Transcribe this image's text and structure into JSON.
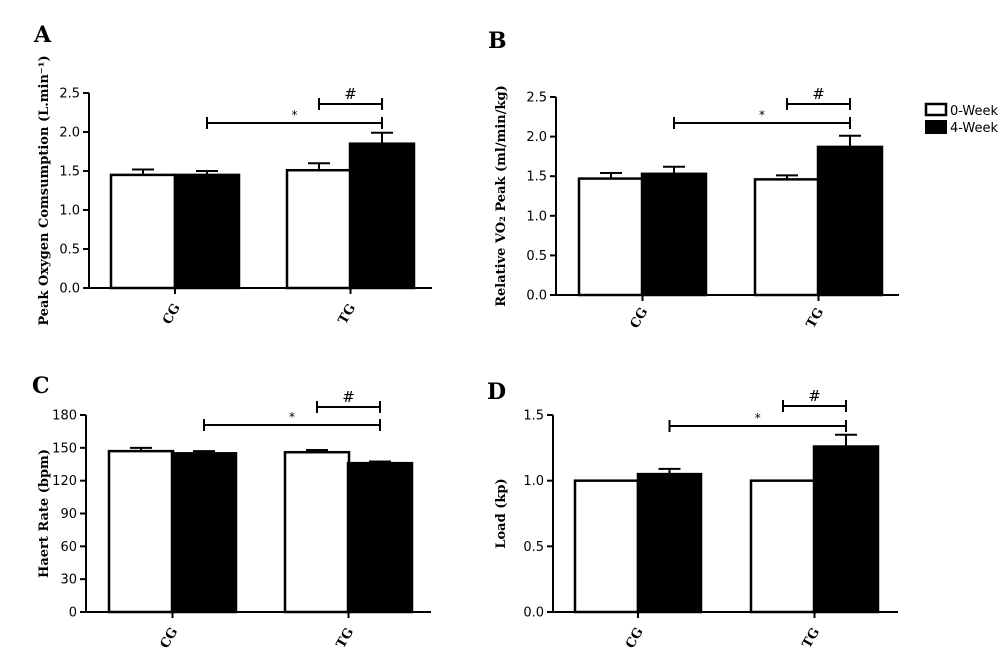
{
  "legend": {
    "items": [
      {
        "label": "0-Week",
        "color": "#ffffff"
      },
      {
        "label": "4-Week",
        "color": "#000000"
      }
    ]
  },
  "chart_data": [
    {
      "type": "bar",
      "panel": "A",
      "ylabel": "Peak Oxygen Comsumption (L.min⁻¹)",
      "categories": [
        "CG",
        "TG"
      ],
      "ylim": [
        0,
        2.5
      ],
      "yticks": [
        0.0,
        0.5,
        1.0,
        1.5,
        2.0,
        2.5
      ],
      "tick_labels": [
        "0.0",
        "0.5",
        "1.0",
        "1.5",
        "2.0",
        "2.5"
      ],
      "series": [
        {
          "name": "0-Week",
          "values": [
            1.45,
            1.51
          ],
          "errors": [
            0.07,
            0.09
          ]
        },
        {
          "name": "4-Week",
          "values": [
            1.45,
            1.85
          ],
          "errors": [
            0.05,
            0.14
          ]
        }
      ],
      "annotations": [
        {
          "symbol": "*",
          "from": "CG",
          "to": "TG"
        },
        {
          "symbol": "#",
          "within": "TG"
        }
      ]
    },
    {
      "type": "bar",
      "panel": "B",
      "ylabel": "Relative VO₂ Peak (ml/min/kg)",
      "categories": [
        "CG",
        "TG"
      ],
      "ylim": [
        0,
        2.5
      ],
      "yticks": [
        0.0,
        0.5,
        1.0,
        1.5,
        2.0,
        2.5
      ],
      "tick_labels": [
        "0.0",
        "0.5",
        "1.0",
        "1.5",
        "2.0",
        "2.5"
      ],
      "series": [
        {
          "name": "0-Week",
          "values": [
            1.47,
            1.46
          ],
          "errors": [
            0.07,
            0.05
          ]
        },
        {
          "name": "4-Week",
          "values": [
            1.53,
            1.87
          ],
          "errors": [
            0.09,
            0.14
          ]
        }
      ],
      "annotations": [
        {
          "symbol": "*",
          "from": "CG",
          "to": "TG"
        },
        {
          "symbol": "#",
          "within": "TG"
        }
      ]
    },
    {
      "type": "bar",
      "panel": "C",
      "ylabel": "Haert Rate (bpm)",
      "categories": [
        "CG",
        "TG"
      ],
      "ylim": [
        0,
        180
      ],
      "yticks": [
        0,
        30,
        60,
        90,
        120,
        150,
        180
      ],
      "tick_labels": [
        "0",
        "30",
        "60",
        "90",
        "120",
        "150",
        "180"
      ],
      "series": [
        {
          "name": "0-Week",
          "values": [
            147,
            146
          ],
          "errors": [
            3,
            2
          ]
        },
        {
          "name": "4-Week",
          "values": [
            145,
            136
          ],
          "errors": [
            2,
            1.5
          ]
        }
      ],
      "annotations": [
        {
          "symbol": "*",
          "from": "CG",
          "to": "TG"
        },
        {
          "symbol": "#",
          "within": "TG"
        }
      ]
    },
    {
      "type": "bar",
      "panel": "D",
      "ylabel": "Load (kp)",
      "categories": [
        "CG",
        "TG"
      ],
      "ylim": [
        0,
        1.5
      ],
      "yticks": [
        0.0,
        0.5,
        1.0,
        1.5
      ],
      "tick_labels": [
        "0.0",
        "0.5",
        "1.0",
        "1.5"
      ],
      "series": [
        {
          "name": "0-Week",
          "values": [
            1.0,
            1.0
          ],
          "errors": [
            0,
            0
          ]
        },
        {
          "name": "4-Week",
          "values": [
            1.05,
            1.26
          ],
          "errors": [
            0.04,
            0.09
          ]
        }
      ],
      "annotations": [
        {
          "symbol": "*",
          "from": "CG",
          "to": "TG"
        },
        {
          "symbol": "#",
          "within": "TG"
        }
      ]
    }
  ]
}
